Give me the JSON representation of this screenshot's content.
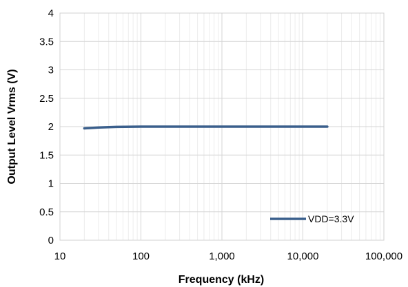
{
  "chart_data": {
    "type": "line",
    "xlabel": "Frequency (kHz)",
    "ylabel": "Output Level Vrms (V)",
    "x_scale": "log",
    "xlim": [
      10,
      100000
    ],
    "ylim": [
      0,
      4
    ],
    "x_ticks": [
      10,
      100,
      1000,
      10000,
      100000
    ],
    "x_tick_labels": [
      "10",
      "100",
      "1,000",
      "10,000",
      "100,000"
    ],
    "y_ticks": [
      0,
      0.5,
      1,
      1.5,
      2,
      2.5,
      3,
      3.5,
      4
    ],
    "y_tick_labels": [
      "0",
      "0.5",
      "1",
      "1.5",
      "2",
      "2.5",
      "3",
      "3.5",
      "4"
    ],
    "grid": true,
    "legend_position": "bottom-right",
    "series": [
      {
        "name": "VDD=3.3V",
        "color": "#3a5f8c",
        "x": [
          20,
          30,
          50,
          100,
          1000,
          10000,
          20000
        ],
        "y": [
          1.97,
          1.985,
          1.995,
          2.0,
          2.0,
          2.0,
          2.0
        ]
      }
    ]
  }
}
